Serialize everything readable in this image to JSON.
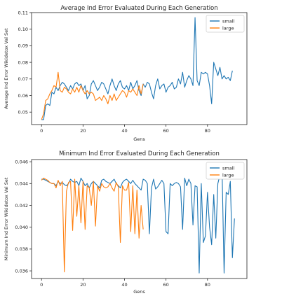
{
  "colors": {
    "small": "#1f77b4",
    "large": "#ff7f0e"
  },
  "chart_data": [
    {
      "type": "line",
      "title": "Average Ind Error Evaluated During Each Generation",
      "xlabel": "Gens",
      "ylabel": "Average Ind Error Wikidetox Val Set",
      "xlim": [
        -4.8,
        99
      ],
      "ylim": [
        0.0425,
        0.11
      ],
      "xticks": [
        0,
        20,
        40,
        60,
        80
      ],
      "yticks": [
        0.05,
        0.06,
        0.07,
        0.08,
        0.09,
        0.1,
        0.11
      ],
      "ytick_labels": [
        "0.05",
        "0.06",
        "0.07",
        "0.08",
        "0.09",
        "0.10",
        "0.11"
      ],
      "grid": false,
      "legend": "top-right",
      "series": [
        {
          "name": "small",
          "x_start": 0,
          "values": [
            0.0455,
            0.0455,
            0.054,
            0.055,
            0.054,
            0.062,
            0.061,
            0.065,
            0.063,
            0.066,
            0.068,
            0.067,
            0.065,
            0.063,
            0.066,
            0.064,
            0.067,
            0.068,
            0.066,
            0.067,
            0.063,
            0.066,
            0.058,
            0.06,
            0.067,
            0.069,
            0.066,
            0.063,
            0.065,
            0.068,
            0.067,
            0.064,
            0.061,
            0.066,
            0.07,
            0.066,
            0.063,
            0.067,
            0.069,
            0.065,
            0.064,
            0.066,
            0.063,
            0.068,
            0.064,
            0.066,
            0.069,
            0.063,
            0.06,
            0.067,
            0.065,
            0.068,
            0.067,
            0.062,
            0.058,
            0.066,
            0.07,
            0.064,
            0.066,
            0.067,
            0.062,
            0.065,
            0.066,
            0.068,
            0.064,
            0.065,
            0.07,
            0.067,
            0.074,
            0.065,
            0.069,
            0.072,
            0.07,
            0.066,
            0.107,
            0.069,
            0.066,
            0.074,
            0.073,
            0.074,
            0.073,
            0.066,
            0.055,
            0.08,
            0.076,
            0.072,
            0.077,
            0.07,
            0.072,
            0.07,
            0.071,
            0.069,
            0.075
          ]
        },
        {
          "name": "large",
          "x_start": 0,
          "values": [
            0.0455,
            0.049,
            0.057,
            0.058,
            0.061,
            0.063,
            0.066,
            0.065,
            0.074,
            0.063,
            0.062,
            0.065,
            0.064,
            0.062,
            0.061,
            0.064,
            0.062,
            0.065,
            0.062,
            0.066,
            0.063,
            0.061,
            0.063,
            0.061,
            0.062,
            0.061,
            0.057,
            0.058,
            0.059,
            0.057,
            0.06,
            0.058,
            0.055,
            0.06,
            0.057,
            0.061,
            0.057,
            0.059,
            0.061,
            0.063,
            0.062,
            0.059,
            0.063,
            0.062,
            0.064,
            0.062,
            0.06,
            0.066,
            0.061,
            0.067
          ]
        }
      ]
    },
    {
      "type": "line",
      "title": "Minimum Ind Error Evaluated During Each Generation",
      "xlabel": "Gens",
      "ylabel": "Minimum Ind Error Wikidetox Val Set",
      "xlim": [
        -4.8,
        99
      ],
      "ylim": [
        0.0353,
        0.0462
      ],
      "xticks": [
        0,
        20,
        40,
        60,
        80
      ],
      "yticks": [
        0.036,
        0.038,
        0.04,
        0.042,
        0.044,
        0.046
      ],
      "ytick_labels": [
        "0.036",
        "0.038",
        "0.040",
        "0.042",
        "0.044",
        "0.046"
      ],
      "grid": false,
      "legend": "top-right",
      "series": [
        {
          "name": "small",
          "x_start": 0,
          "values": [
            0.0444,
            0.0444,
            0.0443,
            0.0442,
            0.0441,
            0.044,
            0.044,
            0.0438,
            0.0442,
            0.044,
            0.0441,
            0.0439,
            0.0438,
            0.044,
            0.0444,
            0.0442,
            0.0441,
            0.0442,
            0.0438,
            0.0445,
            0.0442,
            0.0438,
            0.044,
            0.0436,
            0.044,
            0.0442,
            0.044,
            0.0438,
            0.0436,
            0.0443,
            0.0444,
            0.0442,
            0.0441,
            0.044,
            0.0442,
            0.0444,
            0.044,
            0.0438,
            0.0436,
            0.0441,
            0.0443,
            0.0444,
            0.0442,
            0.044,
            0.0443,
            0.044,
            0.0438,
            0.0436,
            0.0434,
            0.0444,
            0.0443,
            0.044,
            0.0394,
            0.0436,
            0.0444,
            0.0435,
            0.0437,
            0.044,
            0.0443,
            0.044,
            0.0396,
            0.0394,
            0.044,
            0.0438,
            0.044,
            0.0441,
            0.044,
            0.0437,
            0.0398,
            0.0445,
            0.0438,
            0.0444,
            0.044,
            0.0402,
            0.0438,
            0.0437,
            0.0358,
            0.044,
            0.0386,
            0.0392,
            0.0432,
            0.04,
            0.0384,
            0.043,
            0.039,
            0.044,
            0.0448,
            0.0455,
            0.0358,
            0.0432,
            0.043,
            0.0442,
            0.0372,
            0.0408
          ]
        },
        {
          "name": "large",
          "x_start": 0,
          "values": [
            0.0443,
            0.0445,
            0.0444,
            0.0443,
            0.0441,
            0.044,
            0.044,
            0.0436,
            0.0443,
            0.0438,
            0.0442,
            0.0359,
            0.0433,
            0.0441,
            0.0442,
            0.0397,
            0.0444,
            0.041,
            0.0438,
            0.0404,
            0.0442,
            0.0398,
            0.0438,
            0.0436,
            0.042,
            0.0442,
            0.0401,
            0.0438,
            0.0433,
            0.044,
            0.0437,
            0.0436,
            0.0437,
            0.044,
            0.0436,
            0.0433,
            0.0441,
            0.0437,
            0.0386,
            0.0438,
            0.0434,
            0.0434,
            0.0441,
            0.0396,
            0.0438,
            0.0394,
            0.0434,
            0.039,
            0.042,
            0.0398
          ]
        }
      ]
    }
  ]
}
